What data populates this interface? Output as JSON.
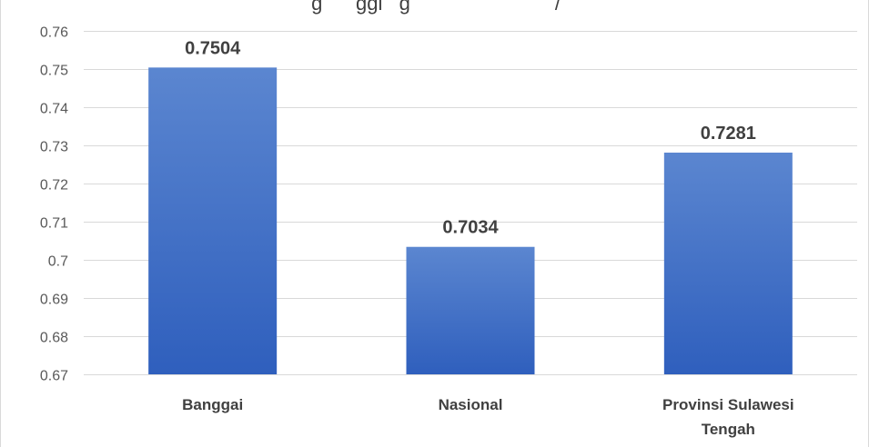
{
  "chart_data": {
    "type": "bar",
    "title": "g      ggi   g                          /",
    "categories": [
      "Banggai",
      "Nasional",
      "Provinsi Sulawesi Tengah"
    ],
    "category_lines": [
      [
        "Banggai"
      ],
      [
        "Nasional"
      ],
      [
        "Provinsi Sulawesi",
        "Tengah"
      ]
    ],
    "values": [
      0.7504,
      0.7034,
      0.7281
    ],
    "data_labels": [
      "0.7504",
      "0.7034",
      "0.7281"
    ],
    "yticks": [
      0.67,
      0.68,
      0.69,
      0.7,
      0.71,
      0.72,
      0.73,
      0.74,
      0.75,
      0.76
    ],
    "ytick_labels": [
      "0.67",
      "0.68",
      "0.69",
      "0.7",
      "0.71",
      "0.72",
      "0.73",
      "0.74",
      "0.75",
      "0.76"
    ],
    "ylim": [
      0.67,
      0.76
    ],
    "xlabel": "",
    "ylabel": "",
    "grid": true,
    "legend": "none",
    "colors": {
      "bar_top": "#5b86d0",
      "bar_bottom": "#2f5fbd",
      "gridline": "#d9d9d9",
      "text": "#404040"
    }
  }
}
